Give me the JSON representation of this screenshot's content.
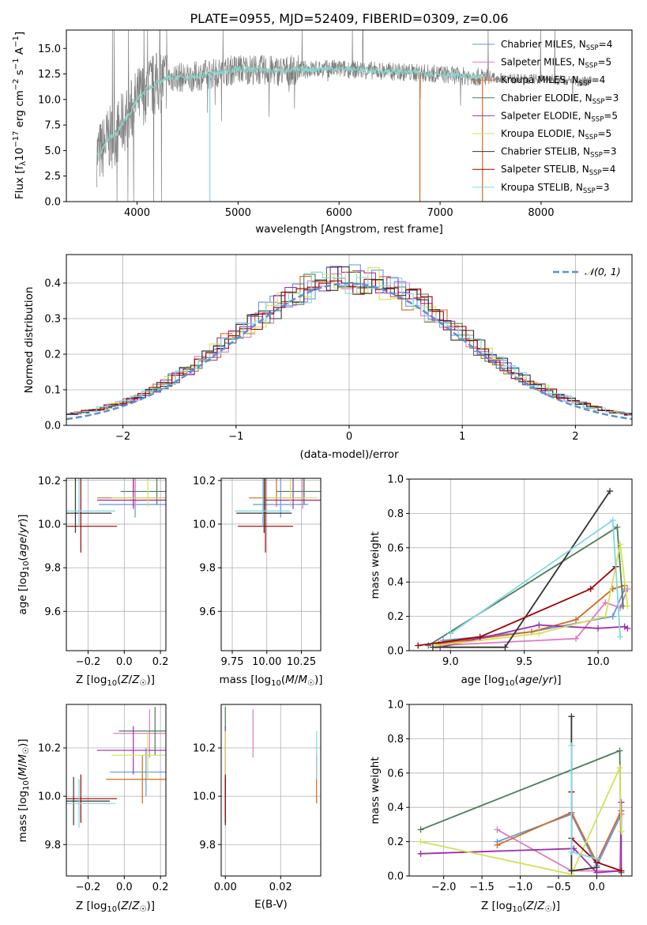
{
  "figure_title": "PLATE=0955, MJD=52409, FIBERID=0309, z=0.06",
  "model_colors": [
    "#6495ed",
    "#e377c2",
    "#d2691e",
    "#4a7c59",
    "#9b30ab",
    "#d4e157",
    "#333333",
    "#a00000",
    "#80d8e0"
  ],
  "legend_labels": [
    "Chabrier MILES, N_SSP=4",
    "Salpeter MILES, N_SSP=5",
    "Kroupa MILES, N_SSP=4",
    "Chabrier ELODIE, N_SSP=3",
    "Salpeter ELODIE, N_SSP=5",
    "Kroupa ELODIE, N_SSP=5",
    "Chabrier STELIB, N_SSP=3",
    "Salpeter STELIB, N_SSP=4",
    "Kroupa STELIB, N_SSP=3"
  ],
  "chart_data": [
    {
      "id": "spectrum",
      "type": "line",
      "xlabel": "wavelength [Angstrom, rest frame]",
      "ylabel": "Flux [f_λ10^-17 erg cm^-2 s^-1 A^-1]",
      "xlim": [
        3300,
        8900
      ],
      "ylim": [
        0,
        16.8
      ],
      "xticks": [
        4000,
        5000,
        6000,
        7000,
        8000
      ],
      "yticks": [
        0.0,
        2.5,
        5.0,
        7.5,
        10.0,
        12.5,
        15.0
      ],
      "grid": false,
      "legend_position": "right",
      "data_color": "#808080",
      "continuum": {
        "x": [
          3600,
          3650,
          3700,
          3800,
          3900,
          3950,
          4000,
          4100,
          4200,
          4300,
          4400,
          4500,
          4600,
          4700,
          4800,
          4900,
          5000,
          5200,
          5400,
          5600,
          5800,
          6000,
          6200,
          6400,
          6600,
          6800,
          7000,
          7200,
          7400,
          7600,
          7800,
          8000,
          8200,
          8400,
          8600,
          8800
        ],
        "y": [
          4.6,
          5.0,
          6.0,
          6.7,
          8.3,
          9.0,
          10.0,
          11.0,
          11.6,
          12.1,
          12.2,
          12.1,
          12.3,
          12.5,
          12.6,
          12.8,
          13.0,
          12.9,
          12.8,
          12.9,
          13.0,
          13.0,
          12.9,
          12.8,
          12.7,
          12.6,
          12.5,
          12.3,
          12.2,
          12.1,
          12.0,
          12.0,
          11.9,
          11.8,
          11.7,
          11.6
        ]
      }
    },
    {
      "id": "residuals",
      "type": "line",
      "xlabel": "(data-model)/error",
      "ylabel": "Normed distribution",
      "xlim": [
        -2.5,
        2.5
      ],
      "ylim": [
        0,
        0.48
      ],
      "xticks": [
        -2,
        -1,
        0,
        1,
        2
      ],
      "yticks": [
        0.0,
        0.1,
        0.2,
        0.3,
        0.4
      ],
      "grid": true,
      "legend": [
        "𝒩(0, 1)"
      ],
      "legend_position": "top-right",
      "gaussian": {
        "mean": 0,
        "sigma": 1,
        "style": "dashed",
        "color": "#5b8fd9"
      }
    },
    {
      "id": "age-vs-Z",
      "type": "scatter",
      "xlabel": "Z [log10(Z/Z☉)]",
      "ylabel": "age  [log10(age/yr)]",
      "xlim": [
        -0.32,
        0.23
      ],
      "ylim": [
        9.42,
        10.21
      ],
      "xticks": [
        -0.2,
        0.0,
        0.2
      ],
      "yticks": [
        9.6,
        9.8,
        10.0,
        10.2
      ],
      "grid": true,
      "points": [
        {
          "x": 0.06,
          "y": 10.09,
          "xerr": [
            0.2,
            0.2
          ],
          "yerr": [
            0.06,
            0.12
          ]
        },
        {
          "x": 0.06,
          "y": 10.11,
          "xerr": [
            0.2,
            0.2
          ],
          "yerr": [
            0.04,
            0.14
          ]
        },
        {
          "x": 0.05,
          "y": 10.12,
          "xerr": [
            0.2,
            0.2
          ],
          "yerr": [
            0.04,
            0.14
          ]
        },
        {
          "x": 0.18,
          "y": 10.15,
          "xerr": [
            0.2,
            0.2
          ],
          "yerr": [
            0.06,
            0.12
          ]
        },
        {
          "x": 0.05,
          "y": 10.11,
          "xerr": [
            0.2,
            0.2
          ],
          "yerr": [
            0.04,
            0.18
          ]
        },
        {
          "x": 0.13,
          "y": 10.12,
          "xerr": [
            0.2,
            0.2
          ],
          "yerr": [
            0.04,
            0.12
          ]
        },
        {
          "x": -0.27,
          "y": 10.05,
          "xerr": [
            0.2,
            0.2
          ],
          "yerr": [
            0.09,
            0.29
          ]
        },
        {
          "x": -0.24,
          "y": 9.99,
          "xerr": [
            0.2,
            0.2
          ],
          "yerr": [
            0.12,
            0.56
          ]
        },
        {
          "x": -0.25,
          "y": 10.06,
          "xerr": [
            0.2,
            0.2
          ],
          "yerr": [
            0.07,
            0.31
          ]
        }
      ]
    },
    {
      "id": "age-vs-mass",
      "type": "scatter",
      "xlabel": "mass [log10(M/M☉)]",
      "ylabel": "",
      "xlim": [
        9.67,
        10.39
      ],
      "ylim": [
        9.42,
        10.21
      ],
      "xticks": [
        9.75,
        10.0,
        10.25
      ],
      "yticks": [
        9.6,
        9.8,
        10.0,
        10.2
      ],
      "grid": true,
      "points": [
        {
          "x": 10.1,
          "y": 10.09,
          "xerr": [
            0.2,
            0.2
          ],
          "yerr": [
            0.06,
            0.12
          ]
        },
        {
          "x": 10.26,
          "y": 10.11,
          "xerr": [
            0.2,
            0.2
          ],
          "yerr": [
            0.04,
            0.14
          ]
        },
        {
          "x": 10.07,
          "y": 10.12,
          "xerr": [
            0.2,
            0.2
          ],
          "yerr": [
            0.04,
            0.14
          ]
        },
        {
          "x": 10.27,
          "y": 10.15,
          "xerr": [
            0.2,
            0.2
          ],
          "yerr": [
            0.06,
            0.12
          ]
        },
        {
          "x": 10.19,
          "y": 10.11,
          "xerr": [
            0.2,
            0.2
          ],
          "yerr": [
            0.04,
            0.18
          ]
        },
        {
          "x": 10.17,
          "y": 10.12,
          "xerr": [
            0.2,
            0.2
          ],
          "yerr": [
            0.04,
            0.12
          ]
        },
        {
          "x": 9.98,
          "y": 10.05,
          "xerr": [
            0.2,
            0.2
          ],
          "yerr": [
            0.09,
            0.29
          ]
        },
        {
          "x": 9.99,
          "y": 9.99,
          "xerr": [
            0.2,
            0.2
          ],
          "yerr": [
            0.12,
            0.56
          ]
        },
        {
          "x": 9.97,
          "y": 10.06,
          "xerr": [
            0.2,
            0.2
          ],
          "yerr": [
            0.07,
            0.31
          ]
        }
      ]
    },
    {
      "id": "weight-vs-age",
      "type": "line",
      "xlabel": "age  [log10(age/yr)]",
      "ylabel": "mass weight",
      "xlim": [
        8.72,
        10.23
      ],
      "ylim": [
        0,
        1.0
      ],
      "xticks": [
        9.0,
        9.5,
        10.0
      ],
      "yticks": [
        0.0,
        0.2,
        0.4,
        0.6,
        0.8,
        1.0
      ],
      "grid": true,
      "series": [
        {
          "x": [
            8.95,
            9.55,
            10.1,
            10.18
          ],
          "y": [
            0.06,
            0.11,
            0.2,
            0.36
          ]
        },
        {
          "x": [
            8.9,
            9.85,
            10.05,
            10.15,
            10.2
          ],
          "y": [
            0.03,
            0.07,
            0.28,
            0.25,
            0.36
          ]
        },
        {
          "x": [
            8.92,
            9.55,
            9.85,
            10.1,
            10.18
          ],
          "y": [
            0.04,
            0.11,
            0.18,
            0.36,
            0.38
          ]
        },
        {
          "x": [
            8.85,
            10.13,
            10.17
          ],
          "y": [
            0.03,
            0.72,
            0.26
          ]
        },
        {
          "x": [
            8.93,
            9.6,
            10.0,
            10.18,
            10.2
          ],
          "y": [
            0.02,
            0.15,
            0.13,
            0.14,
            0.13
          ]
        },
        {
          "x": [
            8.9,
            9.6,
            10.05,
            10.15,
            10.2
          ],
          "y": [
            0.03,
            0.1,
            0.2,
            0.62,
            0.26
          ]
        },
        {
          "x": [
            8.88,
            9.37,
            10.08
          ],
          "y": [
            0.02,
            0.02,
            0.93
          ]
        },
        {
          "x": [
            8.78,
            9.2,
            9.95,
            10.12
          ],
          "y": [
            0.03,
            0.08,
            0.36,
            0.49
          ]
        },
        {
          "x": [
            9.0,
            10.1,
            10.15
          ],
          "y": [
            0.1,
            0.76,
            0.08
          ]
        }
      ]
    },
    {
      "id": "mass-vs-Z",
      "type": "scatter",
      "xlabel": "Z [log10(Z/Z☉)]",
      "ylabel": "mass [log10(M/M☉)]",
      "xlim": [
        -0.32,
        0.23
      ],
      "ylim": [
        9.67,
        10.38
      ],
      "xticks": [
        -0.2,
        0.0,
        0.2
      ],
      "yticks": [
        9.8,
        10.0,
        10.2
      ],
      "grid": true,
      "points": [
        {
          "x": 0.12,
          "y": 10.1,
          "xerr": [
            0.2,
            0.2
          ],
          "yerr": [
            0.1,
            0.1
          ]
        },
        {
          "x": 0.14,
          "y": 10.26,
          "xerr": [
            0.2,
            0.2
          ],
          "yerr": [
            0.1,
            0.1
          ]
        },
        {
          "x": 0.1,
          "y": 10.07,
          "xerr": [
            0.2,
            0.2
          ],
          "yerr": [
            0.1,
            0.1
          ]
        },
        {
          "x": 0.17,
          "y": 10.27,
          "xerr": [
            0.2,
            0.2
          ],
          "yerr": [
            0.1,
            0.1
          ]
        },
        {
          "x": 0.05,
          "y": 10.19,
          "xerr": [
            0.2,
            0.2
          ],
          "yerr": [
            0.1,
            0.1
          ]
        },
        {
          "x": 0.13,
          "y": 10.17,
          "xerr": [
            0.2,
            0.2
          ],
          "yerr": [
            0.1,
            0.1
          ]
        },
        {
          "x": -0.28,
          "y": 9.98,
          "xerr": [
            0.2,
            0.2
          ],
          "yerr": [
            0.1,
            0.1
          ]
        },
        {
          "x": -0.24,
          "y": 9.99,
          "xerr": [
            0.2,
            0.2
          ],
          "yerr": [
            0.1,
            0.1
          ]
        },
        {
          "x": -0.25,
          "y": 9.97,
          "xerr": [
            0.2,
            0.2
          ],
          "yerr": [
            0.1,
            0.1
          ]
        }
      ]
    },
    {
      "id": "mass-vs-ebv",
      "type": "scatter",
      "xlabel": "E(B-V)",
      "ylabel": "",
      "xlim": [
        -0.0015,
        0.0345
      ],
      "ylim": [
        9.67,
        10.38
      ],
      "xticks": [
        0.0,
        0.02
      ],
      "yticks": [
        9.8,
        10.0,
        10.2
      ],
      "grid": true,
      "points": [
        {
          "x": 0.0,
          "y": 10.1,
          "xerr": [
            0,
            0
          ],
          "yerr": [
            0.1,
            0.1
          ]
        },
        {
          "x": 0.01,
          "y": 10.26,
          "xerr": [
            0,
            0
          ],
          "yerr": [
            0.1,
            0.1
          ]
        },
        {
          "x": 0.033,
          "y": 10.07,
          "xerr": [
            0,
            0
          ],
          "yerr": [
            0.1,
            0.1
          ]
        },
        {
          "x": 0.0,
          "y": 10.27,
          "xerr": [
            0,
            0
          ],
          "yerr": [
            0.1,
            0.1
          ]
        },
        {
          "x": 0.0,
          "y": 10.19,
          "xerr": [
            0,
            0
          ],
          "yerr": [
            0.1,
            0.1
          ]
        },
        {
          "x": 0.0,
          "y": 10.17,
          "xerr": [
            0,
            0
          ],
          "yerr": [
            0.1,
            0.1
          ]
        },
        {
          "x": 0.0,
          "y": 9.98,
          "xerr": [
            0,
            0
          ],
          "yerr": [
            0.1,
            0.1
          ]
        },
        {
          "x": 0.0,
          "y": 9.99,
          "xerr": [
            0,
            0
          ],
          "yerr": [
            0.1,
            0.1
          ]
        },
        {
          "x": 0.033,
          "y": 10.17,
          "xerr": [
            0,
            0
          ],
          "yerr": [
            0.1,
            0.1
          ]
        }
      ]
    },
    {
      "id": "weight-vs-Z",
      "type": "line",
      "xlabel": "Z [log10(Z/Z☉)]",
      "ylabel": "mass weight",
      "xlim": [
        -2.45,
        0.46
      ],
      "ylim": [
        0,
        1.0
      ],
      "xticks": [
        -2.0,
        -1.5,
        -1.0,
        -0.5,
        0.0
      ],
      "yticks": [
        0.0,
        0.2,
        0.4,
        0.6,
        0.8,
        1.0
      ],
      "grid": true,
      "series": [
        {
          "x": [
            -1.3,
            -0.33,
            0.0,
            0.32
          ],
          "y": [
            0.2,
            0.36,
            0.06,
            0.36
          ]
        },
        {
          "x": [
            -1.3,
            -0.33,
            0.0,
            0.3,
            0.32
          ],
          "y": [
            0.27,
            0.03,
            0.03,
            0.03,
            0.36
          ]
        },
        {
          "x": [
            -1.3,
            -0.33,
            0.0,
            0.32
          ],
          "y": [
            0.18,
            0.37,
            0.08,
            0.38
          ]
        },
        {
          "x": [
            -2.3,
            0.3,
            0.32
          ],
          "y": [
            0.27,
            0.73,
            0.02
          ]
        },
        {
          "x": [
            -2.3,
            -0.3,
            0.0,
            0.32,
            0.32
          ],
          "y": [
            0.13,
            0.16,
            0.02,
            0.03,
            0.43
          ]
        },
        {
          "x": [
            -2.3,
            -0.33,
            0.3,
            0.32
          ],
          "y": [
            0.2,
            0.01,
            0.63,
            0.26
          ]
        },
        {
          "x": [
            -0.33,
            -0.33,
            0.0
          ],
          "y": [
            0.93,
            0.03,
            0.05
          ]
        },
        {
          "x": [
            -0.33,
            -0.33,
            0.0,
            0.32
          ],
          "y": [
            0.49,
            0.22,
            0.08,
            0.03
          ]
        },
        {
          "x": [
            -0.33,
            -0.33,
            0.0
          ],
          "y": [
            0.76,
            0.14,
            0.1
          ]
        }
      ]
    }
  ]
}
